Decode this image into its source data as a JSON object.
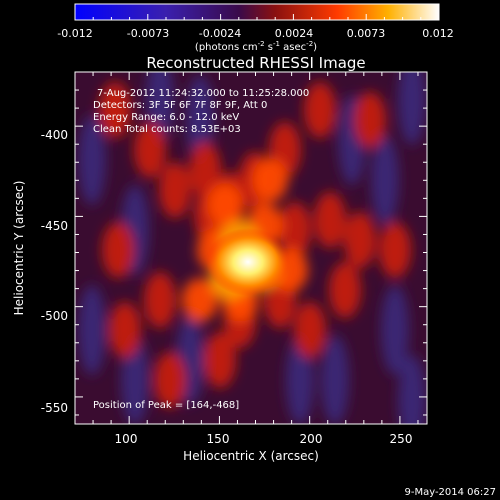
{
  "colorbar": {
    "tick_labels": [
      "-0.012",
      "-0.0073",
      "-0.0024",
      "0.0024",
      "0.0073",
      "0.012"
    ],
    "unit_label": "(photons cm",
    "unit_exp1": "-2",
    "unit_mid": " s",
    "unit_exp2": "-1",
    "unit_mid2": " asec",
    "unit_exp3": "-2",
    "unit_close": ")",
    "range": [
      -0.012,
      0.012
    ]
  },
  "title": "Reconstructed RHESSI Image",
  "info_lines": [
    "7-Aug-2012 11:24:32.000 to 11:25:28.000",
    "Detectors: 3F 5F 6F 7F 8F 9F, Att 0",
    "Energy Range: 6.0 - 12.0 keV",
    "Clean     Total counts: 8.53E+03"
  ],
  "peak_text": "Position of Peak = [164,-468]",
  "x_axis": {
    "label": "Heliocentric X (arcsec)",
    "ticks": [
      "100",
      "150",
      "200",
      "250"
    ],
    "range": [
      70,
      265
    ]
  },
  "y_axis": {
    "label": "Heliocentric Y (arcsec)",
    "ticks": [
      "-400",
      "-450",
      "-500",
      "-550"
    ],
    "range": [
      -565,
      -370
    ]
  },
  "timestamp": "9-May-2014 06:27",
  "colors": {
    "background": "#000000",
    "peak": "#ffffff",
    "cold": "#2a1a5e"
  }
}
